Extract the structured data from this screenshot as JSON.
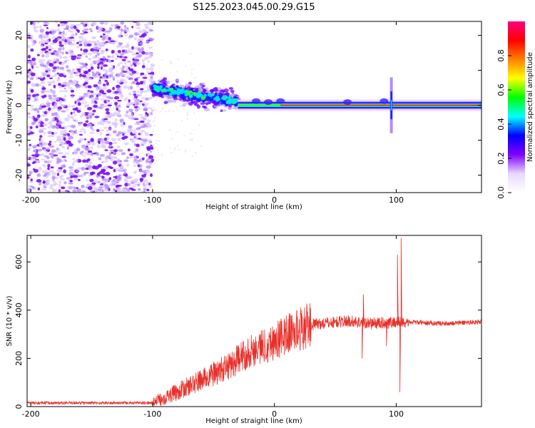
{
  "title": "S125.2023.045.00.29.G15",
  "chart_data": [
    {
      "type": "heatmap",
      "xlabel": "Height of straight line (km)",
      "ylabel": "Frequency (Hz)",
      "xlim": [
        -203,
        170
      ],
      "ylim": [
        -25,
        24
      ],
      "xticks": [
        -200,
        -100,
        0,
        100
      ],
      "yticks": [
        -20,
        -10,
        0,
        10,
        20
      ],
      "colorbar": {
        "label": "Normalized spectral amplitude",
        "range": [
          0,
          1
        ],
        "ticks": [
          "0.0",
          "0.2",
          "0.4",
          "0.6",
          "0.8"
        ],
        "colormap": [
          "#ffffff",
          "#e8d8ff",
          "#8000ff",
          "#0000ff",
          "#00ffff",
          "#00ff00",
          "#ffff00",
          "#ff8000",
          "#ff0000",
          "#ff0080"
        ]
      },
      "features": {
        "noise_region_x": [
          -203,
          -100
        ],
        "scatter_region_x": [
          -100,
          -30
        ],
        "scatter_center_hz": [
          5,
          1
        ],
        "tone_region_x": [
          -30,
          170
        ],
        "tone_hz": 0,
        "spike_x": 96
      }
    },
    {
      "type": "line",
      "xlabel": "Height of straight line (km)",
      "ylabel": "SNR (10 * v/v)",
      "xlim": [
        -203,
        170
      ],
      "ylim": [
        0,
        710
      ],
      "xticks": [
        -200,
        -100,
        0,
        100
      ],
      "yticks": [
        0,
        200,
        400,
        600
      ],
      "color": "#e8302a",
      "profile": [
        [
          -203,
          15
        ],
        [
          -100,
          15
        ],
        [
          -80,
          60
        ],
        [
          -60,
          110
        ],
        [
          -40,
          160
        ],
        [
          -20,
          230
        ],
        [
          0,
          270
        ],
        [
          10,
          300
        ],
        [
          30,
          340
        ],
        [
          60,
          355
        ],
        [
          80,
          345
        ],
        [
          100,
          350
        ],
        [
          110,
          350
        ],
        [
          140,
          345
        ],
        [
          170,
          352
        ]
      ],
      "spikes": [
        [
          104,
          700
        ],
        [
          103,
          60
        ],
        [
          101,
          630
        ],
        [
          73,
          465
        ],
        [
          72,
          200
        ],
        [
          92,
          250
        ]
      ]
    }
  ]
}
